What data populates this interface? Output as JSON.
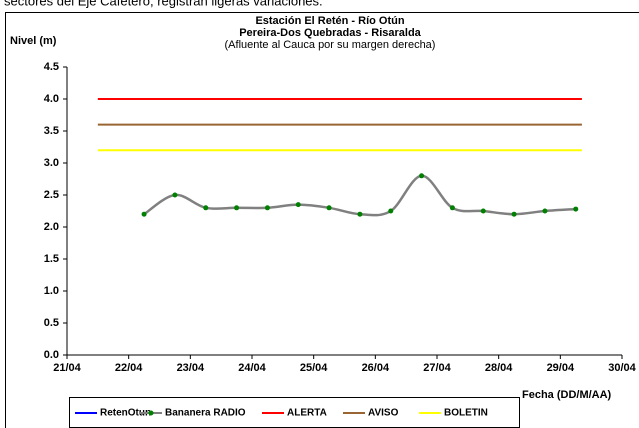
{
  "header_text": "sectores del Eje Cafetero, registran ligeras variaciones.",
  "chart_data": {
    "type": "line",
    "title": "Estación El Retén - Río Otún",
    "subtitle": "Pereira-Dos Quebradas - Risaralda",
    "note": "(Afluente al Cauca por su margen derecha)",
    "y_label": "Nivel (m)",
    "x_label": "Fecha (DD/M/AA)",
    "xlim": [
      21,
      30
    ],
    "xticks": [
      {
        "value": 21,
        "label": "21/04"
      },
      {
        "value": 22,
        "label": "22/04"
      },
      {
        "value": 23,
        "label": "23/04"
      },
      {
        "value": 24,
        "label": "24/04"
      },
      {
        "value": 25,
        "label": "25/04"
      },
      {
        "value": 26,
        "label": "26/04"
      },
      {
        "value": 27,
        "label": "27/04"
      },
      {
        "value": 28,
        "label": "28/04"
      },
      {
        "value": 29,
        "label": "29/04"
      },
      {
        "value": 30,
        "label": "30/04"
      }
    ],
    "ylim": [
      0,
      4.5
    ],
    "yticks": [
      {
        "value": 0,
        "label": "0.0"
      },
      {
        "value": 0.5,
        "label": "0.5"
      },
      {
        "value": 1,
        "label": "1.0"
      },
      {
        "value": 1.5,
        "label": "1.5"
      },
      {
        "value": 2,
        "label": "2.0"
      },
      {
        "value": 2.5,
        "label": "2.5"
      },
      {
        "value": 3,
        "label": "3.0"
      },
      {
        "value": 3.5,
        "label": "3.5"
      },
      {
        "value": 4,
        "label": "4.0"
      },
      {
        "value": 4.5,
        "label": "4.5"
      }
    ],
    "series": [
      {
        "name": "RetenOtun",
        "color": "#0000ff",
        "x": [],
        "values": []
      },
      {
        "name": "Bananera RADIO",
        "color": "#808080",
        "marker_color": "#008000",
        "smooth": true,
        "x": [
          22.25,
          22.75,
          23.25,
          23.75,
          24.25,
          24.75,
          25.25,
          25.75,
          26.25,
          26.75,
          27.25,
          27.75,
          28.25,
          28.75,
          29.25
        ],
        "values": [
          2.2,
          2.5,
          2.3,
          2.3,
          2.3,
          2.35,
          2.3,
          2.2,
          2.25,
          2.8,
          2.3,
          2.25,
          2.2,
          2.25,
          2.28
        ]
      },
      {
        "name": "ALERTA",
        "color": "#ff0000",
        "x": [
          21.5,
          29.35
        ],
        "values": [
          4.0,
          4.0
        ]
      },
      {
        "name": "AVISO",
        "color": "#996633",
        "x": [
          21.5,
          29.35
        ],
        "values": [
          3.6,
          3.6
        ]
      },
      {
        "name": "BOLETIN",
        "color": "#ffff00",
        "x": [
          21.5,
          29.35
        ],
        "values": [
          3.2,
          3.2
        ]
      }
    ]
  }
}
